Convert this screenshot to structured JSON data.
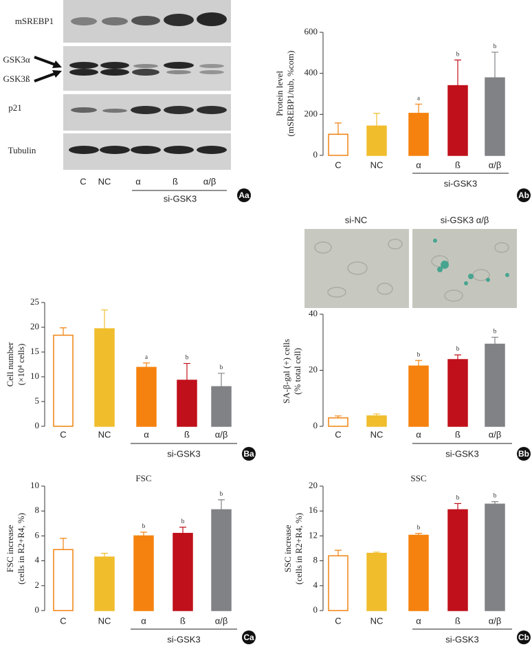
{
  "blot": {
    "rows": [
      "mSREBP1",
      "GSK3α",
      "GSK3ß",
      "p21",
      "Tubulin"
    ],
    "lanes": [
      "C",
      "NC",
      "α",
      "ß",
      "α/β"
    ],
    "group_label": "si-GSK3",
    "panel": "Aa"
  },
  "micrographs": {
    "labels": [
      "si-NC",
      "si-GSK3 α/β"
    ]
  },
  "chart_data": [
    {
      "type": "bar",
      "panel": "Ab",
      "y_label": [
        "Protein level",
        "(mSREBP1/tub, %com)"
      ],
      "categories": [
        "C",
        "NC",
        "α",
        "ß",
        "α/β"
      ],
      "group_label": "si-GSK3",
      "values": [
        103,
        143,
        205,
        340,
        378
      ],
      "errors": [
        55,
        62,
        45,
        125,
        125
      ],
      "annotations": [
        null,
        null,
        "a",
        "b",
        "b"
      ],
      "colors": [
        "#ffffff",
        "#f0bd2d",
        "#f5820f",
        "#c0101b",
        "#808285"
      ],
      "edgecolors": [
        "#f0820f",
        "#f0bd2d",
        "#f5820f",
        "#c0101b",
        "#808285"
      ],
      "ylim": [
        0,
        600
      ],
      "yticks": [
        0,
        200,
        400,
        600
      ]
    },
    {
      "type": "bar",
      "panel": "Ba",
      "y_label": [
        "Cell number",
        "(×10⁴ cells)"
      ],
      "categories": [
        "C",
        "NC",
        "α",
        "ß",
        "α/β"
      ],
      "group_label": "si-GSK3",
      "values": [
        18.4,
        19.7,
        11.9,
        9.3,
        8.0
      ],
      "errors": [
        1.5,
        3.8,
        0.9,
        3.4,
        2.7
      ],
      "annotations": [
        null,
        null,
        "a",
        "b",
        "b"
      ],
      "colors": [
        "#ffffff",
        "#f0bd2d",
        "#f5820f",
        "#c0101b",
        "#808285"
      ],
      "edgecolors": [
        "#f0820f",
        "#f0bd2d",
        "#f5820f",
        "#c0101b",
        "#808285"
      ],
      "ylim": [
        0,
        25
      ],
      "yticks": [
        0,
        5,
        10,
        15,
        20,
        25
      ]
    },
    {
      "type": "bar",
      "panel": "Bb",
      "y_label": [
        "SA-β-gal (+) cells",
        "(% total cell)"
      ],
      "categories": [
        "C",
        "NC",
        "α",
        "ß",
        "α/β"
      ],
      "group_label": "si-GSK3",
      "values": [
        3.0,
        3.7,
        21.5,
        23.8,
        29.3
      ],
      "errors": [
        0.7,
        0.7,
        2.0,
        1.7,
        2.5
      ],
      "annotations": [
        null,
        null,
        "b",
        "b",
        "b"
      ],
      "colors": [
        "#ffffff",
        "#f0bd2d",
        "#f5820f",
        "#c0101b",
        "#808285"
      ],
      "edgecolors": [
        "#f0820f",
        "#f0bd2d",
        "#f5820f",
        "#c0101b",
        "#808285"
      ],
      "ylim": [
        0,
        40
      ],
      "yticks": [
        0,
        20,
        40
      ]
    },
    {
      "type": "bar",
      "panel": "Ca",
      "title": "FSC",
      "y_label": [
        "FSC increase",
        "(cells in R2+R4, %)"
      ],
      "categories": [
        "C",
        "NC",
        "α",
        "ß",
        "α/β"
      ],
      "group_label": "si-GSK3",
      "values": [
        4.9,
        4.3,
        6.0,
        6.2,
        8.1
      ],
      "errors": [
        0.9,
        0.3,
        0.3,
        0.5,
        0.8
      ],
      "annotations": [
        null,
        null,
        "b",
        "b",
        "b"
      ],
      "colors": [
        "#ffffff",
        "#f0bd2d",
        "#f5820f",
        "#c0101b",
        "#808285"
      ],
      "edgecolors": [
        "#f0820f",
        "#f0bd2d",
        "#f5820f",
        "#c0101b",
        "#808285"
      ],
      "ylim": [
        0,
        10
      ],
      "yticks": [
        0,
        2,
        4,
        6,
        8,
        10
      ]
    },
    {
      "type": "bar",
      "panel": "Cb",
      "title": "SSC",
      "y_label": [
        "SSC increase",
        "(cells in R2+R4, %)"
      ],
      "categories": [
        "C",
        "NC",
        "α",
        "ß",
        "α/β"
      ],
      "group_label": "si-GSK3",
      "values": [
        8.8,
        9.2,
        12.1,
        16.2,
        17.1
      ],
      "errors": [
        0.9,
        0.2,
        0.3,
        1.0,
        0.4
      ],
      "annotations": [
        null,
        null,
        "b",
        "b",
        "b"
      ],
      "colors": [
        "#ffffff",
        "#f0bd2d",
        "#f5820f",
        "#c0101b",
        "#808285"
      ],
      "edgecolors": [
        "#f0820f",
        "#f0bd2d",
        "#f5820f",
        "#c0101b",
        "#808285"
      ],
      "ylim": [
        0,
        20
      ],
      "yticks": [
        0,
        4,
        8,
        12,
        16,
        20
      ]
    }
  ]
}
